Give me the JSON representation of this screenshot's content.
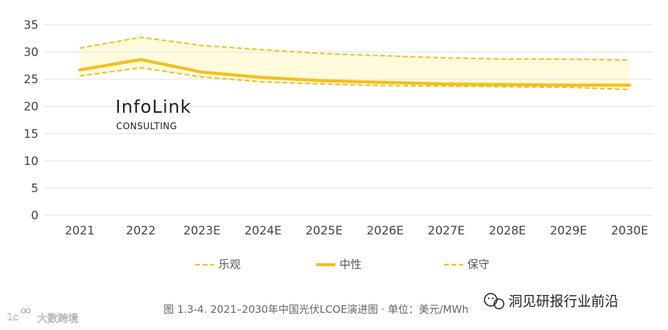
{
  "chart_data": {
    "type": "line",
    "x": [
      "2021",
      "2022",
      "2023E",
      "2024E",
      "2025E",
      "2026E",
      "2027E",
      "2028E",
      "2029E",
      "2030E"
    ],
    "ylim": [
      0,
      35
    ],
    "yticks": [
      0,
      5,
      10,
      15,
      20,
      25,
      30,
      35
    ],
    "grid": true,
    "legend_position": "bottom",
    "series": [
      {
        "name": "乐观",
        "style": "dashed",
        "color": "#f2c01e",
        "values": [
          30.7,
          32.7,
          31.2,
          30.4,
          29.7,
          29.3,
          28.9,
          28.7,
          28.7,
          28.5
        ]
      },
      {
        "name": "中性",
        "style": "solid",
        "color": "#f2c01e",
        "values": [
          26.7,
          28.6,
          26.3,
          25.3,
          24.7,
          24.4,
          24.1,
          24.0,
          23.9,
          23.9
        ]
      },
      {
        "name": "保守",
        "style": "dashed",
        "color": "#f2c01e",
        "values": [
          25.6,
          27.1,
          25.4,
          24.5,
          24.1,
          23.8,
          23.7,
          23.6,
          23.5,
          23.1
        ]
      }
    ],
    "band_fill": "#fffbdc",
    "caption": "图 1.3-4. 2021–2030年中国光伏LCOE演进图 · 单位：美元/MWh"
  },
  "logo": {
    "name": "InfoLink",
    "sub": "CONSULTING"
  },
  "watermarks": {
    "right": "洞见研报行业前沿",
    "left": "大数跨境"
  },
  "colors": {
    "line": "#f2c01e",
    "grid": "#e9e9e9",
    "band": "#fffbdc"
  }
}
